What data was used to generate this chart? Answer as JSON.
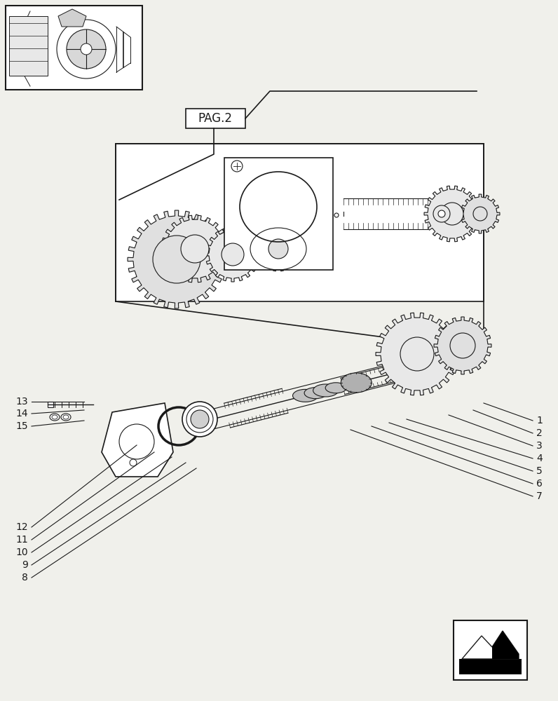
{
  "bg_color": "#f0f0eb",
  "line_color": "#1a1a1a",
  "pag_label": "PAG.2",
  "fig_width": 7.96,
  "fig_height": 10.0,
  "right_labels": [
    [
      1,
      690,
      575,
      760,
      600
    ],
    [
      2,
      675,
      585,
      760,
      618
    ],
    [
      3,
      640,
      592,
      760,
      636
    ],
    [
      4,
      580,
      598,
      760,
      654
    ],
    [
      5,
      555,
      603,
      760,
      672
    ],
    [
      6,
      530,
      608,
      760,
      690
    ],
    [
      7,
      500,
      613,
      760,
      708
    ]
  ],
  "left_labels": [
    [
      12,
      195,
      635,
      45,
      752
    ],
    [
      11,
      220,
      645,
      45,
      770
    ],
    [
      10,
      245,
      652,
      45,
      788
    ],
    [
      9,
      265,
      660,
      45,
      806
    ],
    [
      8,
      280,
      668,
      45,
      824
    ]
  ],
  "small_labels": [
    [
      13,
      120,
      573,
      45,
      573
    ],
    [
      14,
      120,
      585,
      45,
      590
    ],
    [
      15,
      120,
      600,
      45,
      608
    ]
  ]
}
